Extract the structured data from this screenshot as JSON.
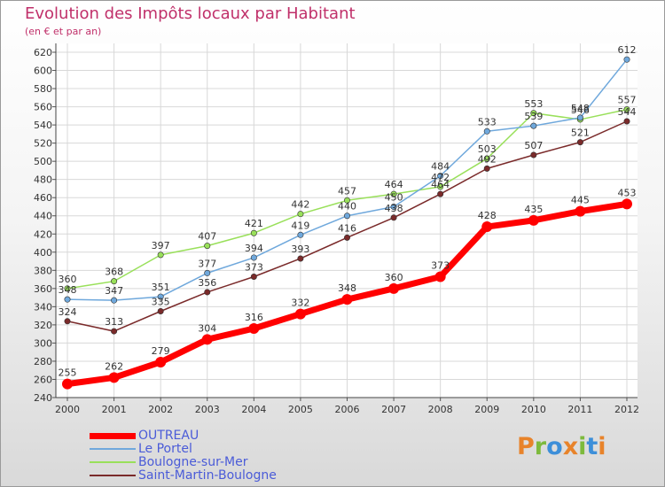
{
  "title": "Evolution des Impôts locaux par Habitant",
  "subtitle": "(en € et par an)",
  "logo": {
    "text": "Proxiti",
    "letters": [
      {
        "ch": "P",
        "color": "#e8832a"
      },
      {
        "ch": "r",
        "color": "#7dba3c"
      },
      {
        "ch": "o",
        "color": "#3d8fd9"
      },
      {
        "ch": "x",
        "color": "#e8832a"
      },
      {
        "ch": "i",
        "color": "#7dba3c"
      },
      {
        "ch": "t",
        "color": "#3d8fd9"
      },
      {
        "ch": "i",
        "color": "#e8832a"
      }
    ]
  },
  "chart_data": {
    "type": "line",
    "title": "Evolution des Impôts locaux par Habitant",
    "subtitle": "(en € et par an)",
    "x": [
      "2000",
      "2001",
      "2002",
      "2003",
      "2004",
      "2005",
      "2006",
      "2007",
      "2008",
      "2009",
      "2010",
      "2011",
      "2012"
    ],
    "ylim": [
      240,
      620
    ],
    "yticks": [
      240,
      260,
      280,
      300,
      320,
      340,
      360,
      380,
      400,
      420,
      440,
      460,
      480,
      500,
      520,
      540,
      560,
      580,
      600,
      620
    ],
    "grid": true,
    "legend_position": "bottom-left",
    "series": [
      {
        "name": "OUTREAU",
        "color": "#ff0000",
        "values": [
          255,
          262,
          279,
          304,
          316,
          332,
          348,
          360,
          373,
          428,
          435,
          445,
          453
        ]
      },
      {
        "name": "Le Portel",
        "color": "#6fa8dc",
        "values": [
          348,
          347,
          351,
          377,
          394,
          419,
          440,
          450,
          484,
          533,
          539,
          548,
          612
        ]
      },
      {
        "name": "Boulogne-sur-Mer",
        "color": "#99e05a",
        "values": [
          360,
          368,
          397,
          407,
          421,
          442,
          457,
          464,
          472,
          503,
          553,
          546,
          557
        ]
      },
      {
        "name": "Saint-Martin-Boulogne",
        "color": "#7a2a2a",
        "values": [
          324,
          313,
          335,
          356,
          373,
          393,
          416,
          438,
          464,
          492,
          507,
          521,
          544
        ]
      }
    ]
  }
}
